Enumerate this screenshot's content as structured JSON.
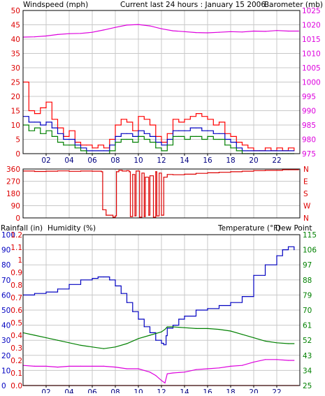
{
  "header": {
    "left_title": "Windspeed (mph)",
    "center_title": "Current last 24 hours : January 15 2006",
    "right_title": "Barometer (mb)"
  },
  "rain_panel_header": {
    "rain_label": "Rainfall (in)",
    "humidity_label": "Humidity (%)",
    "temperature_label": "Temperature (°F)",
    "dewpoint_label": "Dew Point"
  },
  "colors": {
    "grid": "#c8c8c8",
    "wind_gust": "#ff0000",
    "wind_avg": "#0000c0",
    "wind_speed": "#008000",
    "barometer": "#dd00dd",
    "direction": "#dd0000",
    "humidity": "#0000c0",
    "temperature": "#008000",
    "dewpoint": "#dd00dd",
    "rainfall": "#ff0000"
  },
  "chart_data": [
    {
      "type": "line",
      "x_unit": "hour",
      "xlim": [
        0,
        24
      ],
      "x_tick_labels": [
        "02",
        "04",
        "06",
        "08",
        "10",
        "12",
        "14",
        "16",
        "18",
        "20",
        "22"
      ],
      "x_tick_hours": [
        2,
        4,
        6,
        8,
        10,
        12,
        14,
        16,
        18,
        20,
        22
      ],
      "ylabel": "Windspeed (mph)",
      "ylim": [
        0,
        50
      ],
      "y_ticks": [
        0,
        5,
        10,
        15,
        20,
        25,
        30,
        35,
        40,
        45,
        50
      ],
      "y2label": "Barometer (mb)",
      "y2lim": [
        975,
        1025
      ],
      "y2_ticks": [
        975,
        980,
        985,
        990,
        995,
        1000,
        1005,
        1010,
        1015,
        1020,
        1025
      ],
      "series": [
        {
          "axis": "y",
          "color_key": "wind_gust",
          "x": [
            0,
            0.5,
            1,
            1.5,
            2,
            2.5,
            3,
            3.5,
            4,
            4.5,
            5,
            5.5,
            6,
            6.5,
            7,
            7.5,
            8,
            8.5,
            9,
            9.5,
            10,
            10.5,
            11,
            11.5,
            12,
            12.5,
            13,
            13.5,
            14,
            14.5,
            15,
            15.5,
            16,
            16.5,
            17,
            17.5,
            18,
            18.5,
            19,
            19.5,
            20,
            20.5,
            21,
            21.5,
            22,
            22.5,
            23,
            23.5
          ],
          "values": [
            25,
            15,
            14,
            16,
            18,
            12,
            9,
            6,
            8,
            4,
            3,
            3,
            2,
            3,
            2,
            5,
            10,
            12,
            11,
            8,
            13,
            12,
            10,
            6,
            4,
            7,
            12,
            11,
            12,
            13,
            14,
            13,
            12,
            10,
            11,
            7,
            6,
            4,
            3,
            2,
            1,
            1,
            2,
            1,
            2,
            1,
            2,
            1
          ]
        },
        {
          "axis": "y",
          "color_key": "wind_avg",
          "x": [
            0,
            0.5,
            1,
            1.5,
            2,
            2.5,
            3,
            3.5,
            4,
            4.5,
            5,
            5.5,
            6,
            6.5,
            7,
            7.5,
            8,
            8.5,
            9,
            9.5,
            10,
            10.5,
            11,
            11.5,
            12,
            12.5,
            13,
            13.5,
            14,
            14.5,
            15,
            15.5,
            16,
            16.5,
            17,
            17.5,
            18,
            18.5,
            19,
            19.5,
            20,
            20.5,
            21,
            21.5,
            22,
            22.5,
            23,
            23.5
          ],
          "values": [
            13,
            11,
            11,
            10,
            11,
            9,
            7,
            5,
            5,
            3,
            2,
            1,
            1,
            1,
            1,
            3,
            6,
            7,
            7,
            6,
            8,
            7,
            6,
            4,
            3,
            5,
            8,
            8,
            8,
            9,
            9,
            8,
            8,
            7,
            7,
            5,
            4,
            2,
            1,
            1,
            1,
            1,
            1,
            1,
            1,
            1,
            1,
            1
          ]
        },
        {
          "axis": "y",
          "color_key": "wind_speed",
          "x": [
            0,
            0.5,
            1,
            1.5,
            2,
            2.5,
            3,
            3.5,
            4,
            4.5,
            5,
            5.5,
            6,
            6.5,
            7,
            7.5,
            8,
            8.5,
            9,
            9.5,
            10,
            10.5,
            11,
            11.5,
            12,
            12.5,
            13,
            13.5,
            14,
            14.5,
            15,
            15.5,
            16,
            16.5,
            17,
            17.5,
            18,
            18.5,
            19,
            19.5,
            20,
            20.5,
            21,
            21.5,
            22,
            22.5,
            23,
            23.5
          ],
          "values": [
            10,
            8,
            9,
            7,
            8,
            6,
            4,
            3,
            3,
            2,
            1,
            0,
            0,
            0,
            0,
            1,
            4,
            5,
            5,
            4,
            6,
            5,
            4,
            2,
            1,
            3,
            6,
            6,
            5,
            6,
            6,
            5,
            6,
            5,
            5,
            3,
            2,
            1,
            0,
            0,
            0,
            0,
            0,
            0,
            0,
            0,
            0,
            0
          ]
        },
        {
          "axis": "y2",
          "color_key": "barometer",
          "x": [
            0,
            1,
            2,
            3,
            4,
            5,
            6,
            7,
            8,
            9,
            10,
            11,
            12,
            13,
            14,
            15,
            16,
            17,
            18,
            19,
            20,
            21,
            22,
            23,
            23.9
          ],
          "values": [
            1015.7,
            1015.8,
            1016.1,
            1016.6,
            1016.9,
            1017.0,
            1017.4,
            1018.2,
            1019.1,
            1019.9,
            1020.1,
            1019.6,
            1018.6,
            1017.9,
            1017.6,
            1017.3,
            1017.2,
            1017.4,
            1017.6,
            1017.5,
            1017.8,
            1017.7,
            1018.0,
            1017.8,
            1017.8
          ]
        }
      ]
    },
    {
      "type": "line",
      "x_unit": "hour",
      "xlim": [
        0,
        24
      ],
      "ylim": [
        0,
        360
      ],
      "y_ticks": [
        0,
        90,
        180,
        270,
        360
      ],
      "y_tick_labels": [
        "N",
        "E",
        "S",
        "W",
        "N"
      ],
      "left_tick_labels": [
        "360",
        "270",
        "180",
        "90",
        "0"
      ],
      "series": [
        {
          "color_key": "direction",
          "x": [
            0,
            1,
            2,
            3,
            4,
            5,
            6,
            6.8,
            6.9,
            7.2,
            7.8,
            8.0,
            8.1,
            8.3,
            8.6,
            9.0,
            9.2,
            9.3,
            9.5,
            9.7,
            9.8,
            10.1,
            10.3,
            10.5,
            10.6,
            10.9,
            11.0,
            11.3,
            11.5,
            11.6,
            11.8,
            12.0,
            12.2,
            12.5,
            13,
            14,
            15,
            16,
            17,
            18,
            19,
            20,
            21,
            22,
            22.5,
            23,
            23.9
          ],
          "values": [
            345,
            342,
            344,
            346,
            343,
            345,
            344,
            340,
            60,
            20,
            5,
            15,
            340,
            350,
            345,
            348,
            340,
            10,
            320,
            15,
            345,
            5,
            330,
            10,
            300,
            20,
            310,
            5,
            340,
            15,
            330,
            20,
            300,
            320,
            318,
            322,
            328,
            332,
            336,
            340,
            344,
            348,
            350,
            350,
            355,
            355,
            355
          ]
        }
      ]
    },
    {
      "type": "line",
      "x_unit": "hour",
      "xlim": [
        0,
        24
      ],
      "y_left_ticks": [
        0,
        10,
        20,
        30,
        40,
        50,
        60,
        70,
        80,
        90,
        100
      ],
      "y_rain_ticks": [
        "0.0",
        "0.1",
        "0.2",
        "0.3",
        "0.4",
        "0.5",
        "0.6",
        "0.7",
        "0.8",
        "0.9",
        "1",
        "1.1",
        "1.2"
      ],
      "y_rain_values": [
        0.0,
        0.1,
        0.2,
        0.3,
        0.4,
        0.5,
        0.6,
        0.7,
        0.8,
        0.9,
        1.0,
        1.1,
        1.2
      ],
      "y_right_ticks": [
        25,
        34,
        43,
        52,
        61,
        70,
        79,
        88,
        97,
        106,
        115
      ],
      "humidity_lim": [
        0,
        100
      ],
      "rain_lim": [
        0,
        1.2
      ],
      "temp_lim": [
        25,
        115
      ],
      "series": [
        {
          "axis": "humidity",
          "color_key": "humidity",
          "x": [
            0,
            1,
            2,
            3,
            4,
            5,
            6,
            6.5,
            7,
            7.5,
            8,
            8.5,
            9,
            9.5,
            10,
            10.5,
            11,
            11.5,
            12,
            12.2,
            12.4,
            12.5,
            13,
            13.5,
            14,
            15,
            16,
            17,
            18,
            19,
            20,
            21,
            22,
            22.5,
            23,
            23.5
          ],
          "values": [
            60,
            61,
            62,
            64,
            67,
            70,
            71,
            72,
            72,
            70,
            66,
            61,
            55,
            49,
            44,
            39,
            35,
            30,
            28,
            27,
            33,
            38,
            40,
            44,
            46,
            50,
            51,
            53,
            55,
            59,
            73,
            80,
            86,
            90,
            92,
            90
          ]
        },
        {
          "axis": "temp",
          "color_key": "temperature",
          "x": [
            0,
            1,
            2,
            3,
            4,
            5,
            6,
            7,
            8,
            9,
            10,
            11,
            12,
            12.3,
            12.5,
            13,
            14,
            15,
            16,
            17,
            18,
            19,
            20,
            21,
            22,
            23,
            23.5
          ],
          "values": [
            56.5,
            55,
            53.5,
            52,
            50.5,
            49,
            48,
            47,
            48,
            50,
            53,
            55,
            57,
            58.5,
            60,
            60,
            59.5,
            59,
            59,
            58.5,
            57.5,
            55.5,
            53.5,
            51.5,
            50.5,
            50,
            50
          ]
        },
        {
          "axis": "temp",
          "color_key": "dewpoint",
          "x": [
            0,
            1,
            2,
            3,
            4,
            5,
            6,
            7,
            8,
            9,
            10,
            10.5,
            11,
            11.5,
            12,
            12.3,
            12.5,
            13,
            14,
            15,
            16,
            17,
            18,
            19,
            20,
            21,
            22,
            23,
            23.5
          ],
          "values": [
            37,
            36.5,
            36.5,
            36,
            36.5,
            36.5,
            36.5,
            36.5,
            36,
            35,
            35,
            34,
            33,
            31,
            28,
            26.5,
            32,
            32.5,
            33,
            34.5,
            35,
            35.5,
            36.5,
            37,
            39,
            40.5,
            40.5,
            40,
            40
          ]
        },
        {
          "axis": "rain",
          "color_key": "rainfall",
          "x": [
            0,
            23.9
          ],
          "values": [
            0,
            0
          ]
        }
      ]
    }
  ]
}
